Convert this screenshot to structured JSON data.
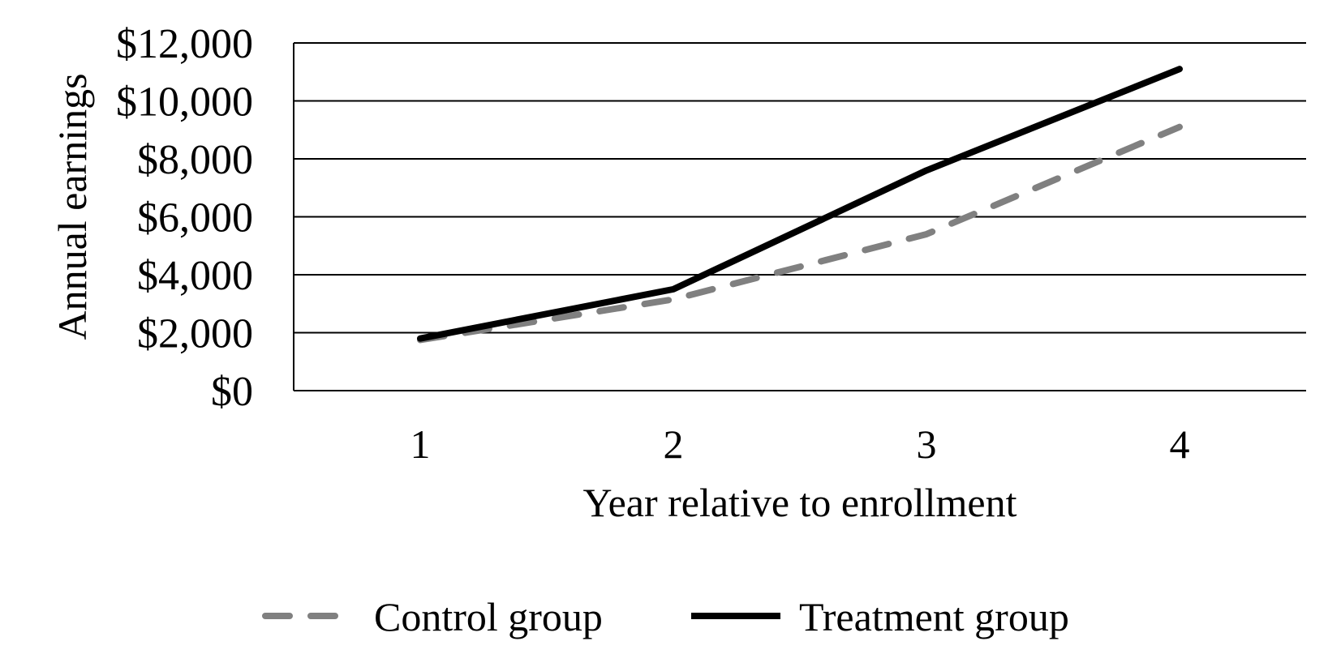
{
  "chart_data": {
    "type": "line",
    "title": "",
    "xlabel": "Year relative to enrollment",
    "ylabel": "Annual earnings",
    "categories": [
      "1",
      "2",
      "3",
      "4"
    ],
    "ylim": [
      0,
      12000
    ],
    "yticks": [
      0,
      2000,
      4000,
      6000,
      8000,
      10000,
      12000
    ],
    "ytick_labels": [
      "$0",
      "$2,000",
      "$4,000",
      "$6,000",
      "$8,000",
      "$10,000",
      "$12,000"
    ],
    "grid": true,
    "legend_position": "bottom",
    "series": [
      {
        "name": "Control group",
        "values": [
          1750,
          3150,
          5400,
          9100
        ],
        "color": "#808080",
        "style": "dashed"
      },
      {
        "name": "Treatment group",
        "values": [
          1800,
          3500,
          7600,
          11100
        ],
        "color": "#000000",
        "style": "solid"
      }
    ]
  }
}
